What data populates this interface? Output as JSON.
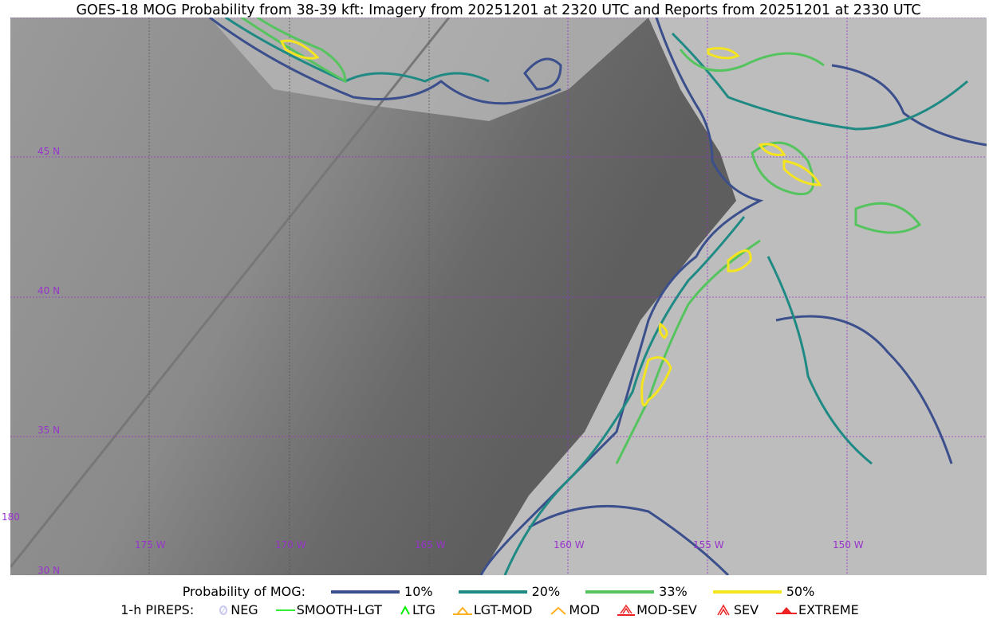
{
  "title": "GOES-18 MOG Probability from 38-39 kft: Imagery from 20251201 at 2320 UTC and Reports from 20251201 at 2330 UTC",
  "map": {
    "lat_labels": [
      "45 N",
      "40 N",
      "35 N",
      "30 N"
    ],
    "lon_labels": [
      "180",
      "175 W",
      "170 W",
      "165 W",
      "160 W",
      "155 W",
      "150 W"
    ],
    "grid_color": "#9933cc"
  },
  "legend": {
    "prob_label": "Probability of MOG:",
    "levels": [
      {
        "label": "10%",
        "color": "#3b4f8c"
      },
      {
        "label": "20%",
        "color": "#1f8a84"
      },
      {
        "label": "33%",
        "color": "#55c45e"
      },
      {
        "label": "50%",
        "color": "#f5e51e"
      }
    ],
    "pirep_label": "1-h PIREPS:",
    "pireps": [
      {
        "label": "NEG",
        "color": "#c8c8f0",
        "icon": "neg-icon"
      },
      {
        "label": "SMOOTH-LGT",
        "color": "#33ee33",
        "icon": "line-icon"
      },
      {
        "label": "LTG",
        "color": "#00ee00",
        "icon": "caret-icon"
      },
      {
        "label": "LGT-MOD",
        "color": "#ffb020",
        "icon": "caret-bar-icon"
      },
      {
        "label": "MOD",
        "color": "#ffb020",
        "icon": "caret-icon"
      },
      {
        "label": "MOD-SEV",
        "color": "#ee2222",
        "icon": "double-caret-bar-icon"
      },
      {
        "label": "SEV",
        "color": "#ee2222",
        "icon": "double-caret-icon"
      },
      {
        "label": "EXTREME",
        "color": "#ee2222",
        "icon": "filled-triangle-icon"
      }
    ]
  }
}
